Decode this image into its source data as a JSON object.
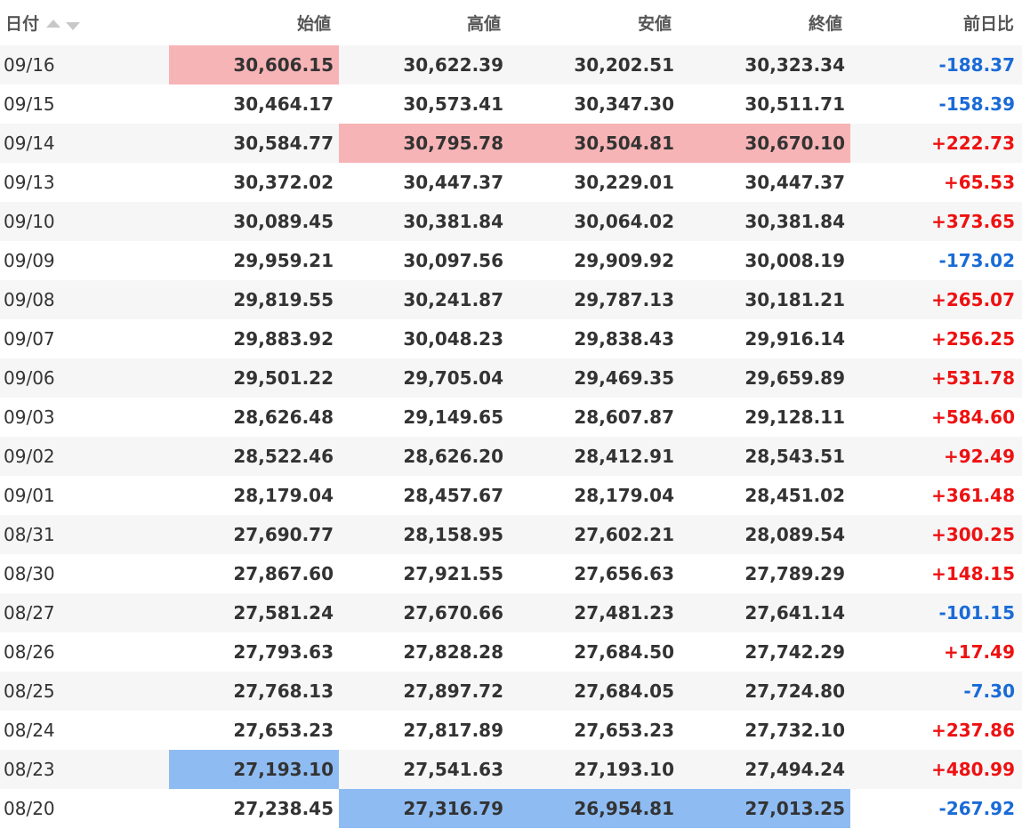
{
  "table": {
    "columns": [
      "日付",
      "始値",
      "高値",
      "安値",
      "終値",
      "前日比"
    ],
    "rows": [
      {
        "date": "09/16",
        "open": "30,606.15",
        "high": "30,622.39",
        "low": "30,202.51",
        "close": "30,323.34",
        "change": "-188.37"
      },
      {
        "date": "09/15",
        "open": "30,464.17",
        "high": "30,573.41",
        "low": "30,347.30",
        "close": "30,511.71",
        "change": "-158.39"
      },
      {
        "date": "09/14",
        "open": "30,584.77",
        "high": "30,795.78",
        "low": "30,504.81",
        "close": "30,670.10",
        "change": "+222.73"
      },
      {
        "date": "09/13",
        "open": "30,372.02",
        "high": "30,447.37",
        "low": "30,229.01",
        "close": "30,447.37",
        "change": "+65.53"
      },
      {
        "date": "09/10",
        "open": "30,089.45",
        "high": "30,381.84",
        "low": "30,064.02",
        "close": "30,381.84",
        "change": "+373.65"
      },
      {
        "date": "09/09",
        "open": "29,959.21",
        "high": "30,097.56",
        "low": "29,909.92",
        "close": "30,008.19",
        "change": "-173.02"
      },
      {
        "date": "09/08",
        "open": "29,819.55",
        "high": "30,241.87",
        "low": "29,787.13",
        "close": "30,181.21",
        "change": "+265.07"
      },
      {
        "date": "09/07",
        "open": "29,883.92",
        "high": "30,048.23",
        "low": "29,838.43",
        "close": "29,916.14",
        "change": "+256.25"
      },
      {
        "date": "09/06",
        "open": "29,501.22",
        "high": "29,705.04",
        "low": "29,469.35",
        "close": "29,659.89",
        "change": "+531.78"
      },
      {
        "date": "09/03",
        "open": "28,626.48",
        "high": "29,149.65",
        "low": "28,607.87",
        "close": "29,128.11",
        "change": "+584.60"
      },
      {
        "date": "09/02",
        "open": "28,522.46",
        "high": "28,626.20",
        "low": "28,412.91",
        "close": "28,543.51",
        "change": "+92.49"
      },
      {
        "date": "09/01",
        "open": "28,179.04",
        "high": "28,457.67",
        "low": "28,179.04",
        "close": "28,451.02",
        "change": "+361.48"
      },
      {
        "date": "08/31",
        "open": "27,690.77",
        "high": "28,158.95",
        "low": "27,602.21",
        "close": "28,089.54",
        "change": "+300.25"
      },
      {
        "date": "08/30",
        "open": "27,867.60",
        "high": "27,921.55",
        "low": "27,656.63",
        "close": "27,789.29",
        "change": "+148.15"
      },
      {
        "date": "08/27",
        "open": "27,581.24",
        "high": "27,670.66",
        "low": "27,481.23",
        "close": "27,641.14",
        "change": "-101.15"
      },
      {
        "date": "08/26",
        "open": "27,793.63",
        "high": "27,828.28",
        "low": "27,684.50",
        "close": "27,742.29",
        "change": "+17.49"
      },
      {
        "date": "08/25",
        "open": "27,768.13",
        "high": "27,897.72",
        "low": "27,684.05",
        "close": "27,724.80",
        "change": "-7.30"
      },
      {
        "date": "08/24",
        "open": "27,653.23",
        "high": "27,817.89",
        "low": "27,653.23",
        "close": "27,732.10",
        "change": "+237.86"
      },
      {
        "date": "08/23",
        "open": "27,193.10",
        "high": "27,541.63",
        "low": "27,193.10",
        "close": "27,494.24",
        "change": "+480.99"
      },
      {
        "date": "08/20",
        "open": "27,238.45",
        "high": "27,316.79",
        "low": "26,954.81",
        "close": "27,013.25",
        "change": "-267.92"
      }
    ]
  },
  "sort": {
    "asc_icon": "sort-ascending-icon",
    "desc_icon": "sort-descending-icon"
  },
  "colors": {
    "positive": "#ee1111",
    "negative": "#1a6bd6",
    "highlight_high": "#f7b4b6",
    "highlight_low": "#8ebcf2",
    "stripe": "#f6f6f7"
  }
}
